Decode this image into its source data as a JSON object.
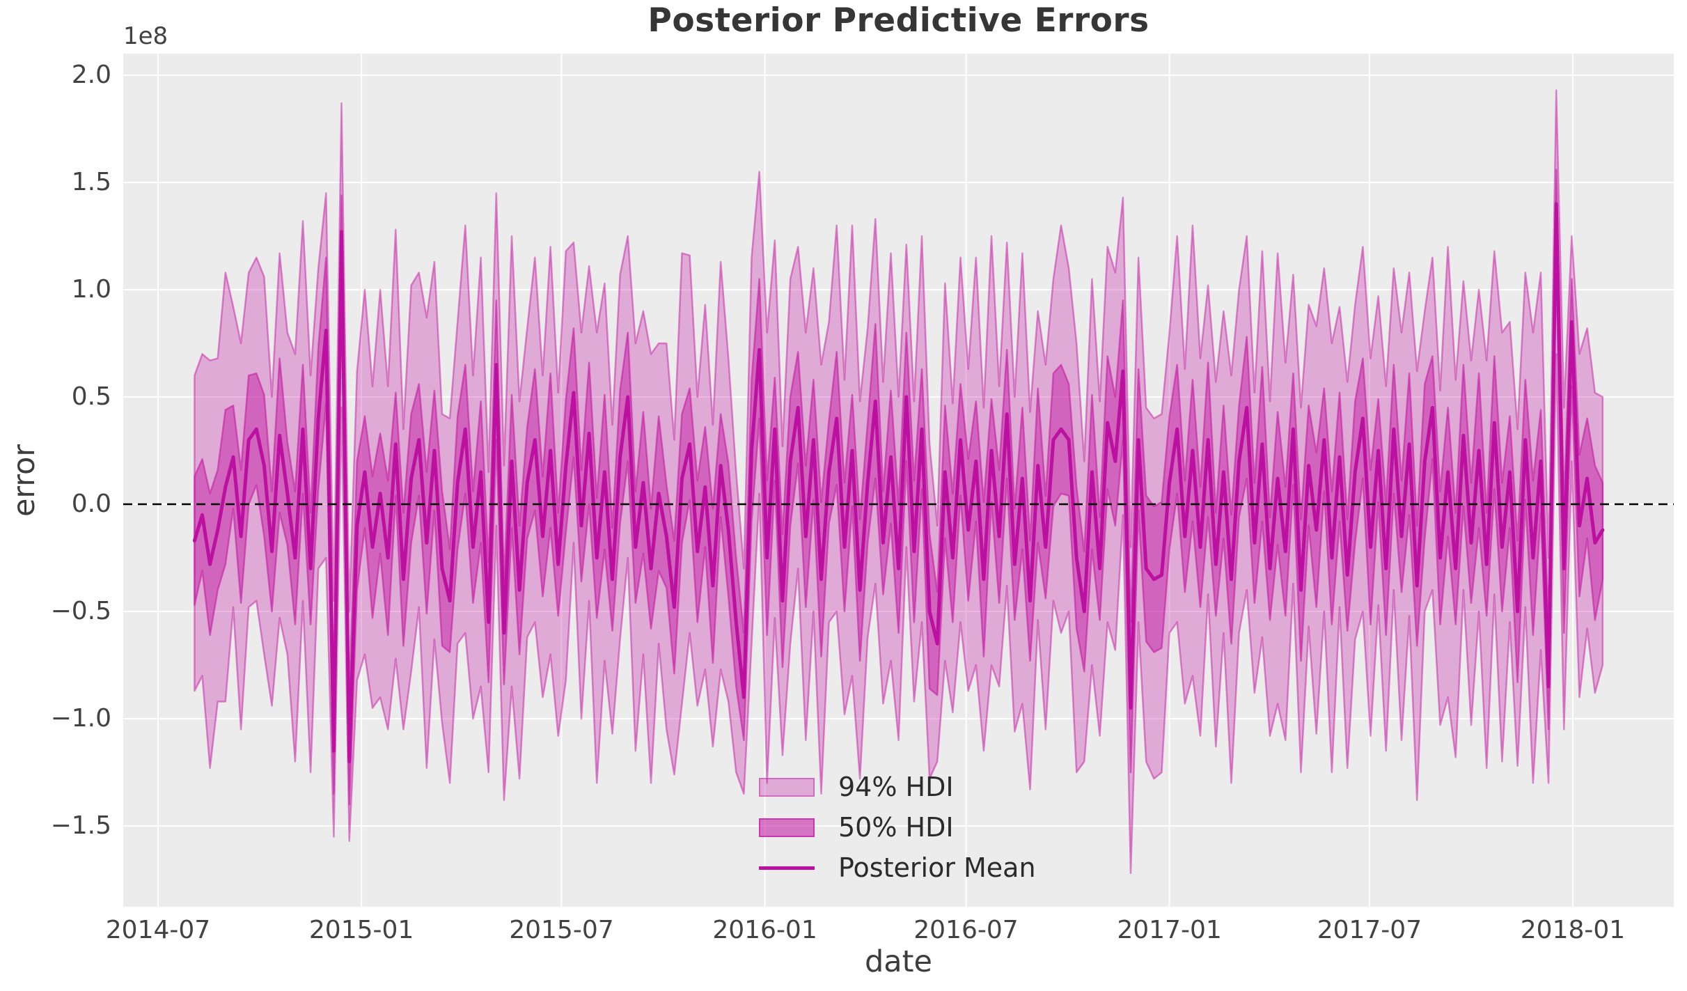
{
  "chart_data": {
    "type": "line",
    "title": "Posterior Predictive Errors",
    "xlabel": "date",
    "ylabel": "error",
    "y_offset_label": "1e8",
    "values_scale": 100000000.0,
    "x_start": "2014-08-03",
    "x_freq_days": 7,
    "n_points": 183,
    "xlim": [
      "2014-05-31",
      "2018-04-02"
    ],
    "ylim": [
      -1.88,
      2.1
    ],
    "grid": true,
    "zero_line": 0.0,
    "legend_position": "lower center",
    "legend": [
      "94% HDI",
      "50% HDI",
      "Posterior Mean"
    ],
    "x_ticks": [
      {
        "label": "2014-07",
        "day": -33
      },
      {
        "label": "2015-01",
        "day": 151
      },
      {
        "label": "2015-07",
        "day": 332
      },
      {
        "label": "2016-01",
        "day": 516
      },
      {
        "label": "2016-07",
        "day": 698
      },
      {
        "label": "2017-01",
        "day": 882
      },
      {
        "label": "2017-07",
        "day": 1063
      },
      {
        "label": "2018-01",
        "day": 1247
      }
    ],
    "y_ticks": [
      2.0,
      1.5,
      1.0,
      0.5,
      0.0,
      -0.5,
      -1.0,
      -1.5
    ],
    "series": {
      "posterior_mean": [
        -0.17,
        -0.05,
        -0.28,
        -0.12,
        0.08,
        0.22,
        -0.15,
        0.3,
        0.35,
        0.18,
        -0.22,
        0.32,
        0.05,
        -0.25,
        0.35,
        -0.3,
        0.4,
        0.81,
        -1.15,
        1.27,
        -1.2,
        -0.1,
        0.15,
        -0.2,
        0.05,
        -0.25,
        0.28,
        -0.35,
        0.12,
        0.3,
        -0.18,
        0.25,
        -0.3,
        -0.45,
        0.1,
        0.35,
        -0.2,
        0.15,
        -0.55,
        0.65,
        -0.6,
        0.2,
        -0.4,
        0.1,
        0.3,
        -0.15,
        0.25,
        -0.28,
        0.18,
        0.52,
        -0.1,
        0.33,
        -0.25,
        0.15,
        -0.35,
        0.22,
        0.5,
        -0.2,
        0.1,
        -0.3,
        0.05,
        -0.15,
        -0.48,
        0.12,
        0.28,
        -0.22,
        0.08,
        -0.38,
        0.18,
        -0.12,
        -0.55,
        -0.9,
        0.25,
        0.72,
        -0.25,
        0.35,
        -0.45,
        0.2,
        0.45,
        -0.15,
        0.3,
        -0.35,
        0.15,
        0.4,
        -0.2,
        0.25,
        -0.4,
        0.1,
        0.48,
        -0.18,
        0.22,
        -0.3,
        0.5,
        -0.22,
        0.35,
        -0.5,
        -0.65,
        0.15,
        -0.25,
        0.3,
        -0.12,
        0.2,
        -0.35,
        0.25,
        -0.15,
        0.42,
        -0.28,
        0.12,
        -0.45,
        0.18,
        -0.2,
        0.3,
        0.35,
        0.3,
        -0.25,
        -0.5,
        0.15,
        -0.3,
        0.38,
        0.2,
        0.62,
        -0.95,
        0.3,
        -0.3,
        -0.35,
        -0.33,
        0.1,
        0.35,
        -0.15,
        0.25,
        -0.2,
        0.3,
        -0.28,
        0.15,
        -0.35,
        0.2,
        0.45,
        -0.18,
        0.28,
        -0.3,
        0.12,
        -0.22,
        0.35,
        -0.4,
        0.18,
        -0.12,
        0.3,
        -0.25,
        0.22,
        -0.33,
        0.15,
        0.4,
        -0.2,
        0.25,
        -0.3,
        0.35,
        -0.15,
        0.28,
        -0.38,
        0.2,
        0.45,
        -0.25,
        0.15,
        -0.3,
        0.32,
        -0.18,
        0.25,
        -0.28,
        0.38,
        -0.2,
        0.15,
        -0.5,
        0.3,
        -0.25,
        0.2,
        -0.85,
        1.4,
        -0.3,
        0.85,
        -0.1,
        0.12,
        -0.18,
        -0.12
      ],
      "hdi50_lower": [
        -0.47,
        -0.31,
        -0.61,
        -0.4,
        -0.28,
        -0.02,
        -0.46,
        0.0,
        0.09,
        -0.15,
        -0.5,
        -0.04,
        -0.19,
        -0.56,
        0.05,
        -0.56,
        0.07,
        0.47,
        -1.35,
        0.95,
        -1.4,
        -0.4,
        -0.11,
        -0.53,
        -0.23,
        -0.61,
        0.04,
        -0.66,
        -0.18,
        0.04,
        -0.51,
        -0.03,
        -0.66,
        -0.69,
        -0.21,
        0.05,
        -0.46,
        -0.18,
        -0.83,
        0.3,
        -0.84,
        -0.11,
        -0.7,
        -0.16,
        -0.03,
        -0.43,
        -0.11,
        -0.52,
        -0.13,
        0.22,
        -0.36,
        0.0,
        -0.53,
        -0.21,
        -0.59,
        -0.09,
        0.2,
        -0.46,
        -0.23,
        -0.58,
        -0.31,
        -0.39,
        -0.79,
        -0.18,
        0.02,
        -0.55,
        -0.2,
        -0.74,
        -0.06,
        -0.43,
        -0.85,
        -1.1,
        -0.08,
        0.4,
        -0.61,
        0.11,
        -0.76,
        -0.1,
        0.19,
        -0.48,
        0.02,
        -0.71,
        -0.09,
        0.09,
        -0.5,
        -0.01,
        -0.73,
        -0.18,
        0.12,
        -0.42,
        -0.09,
        -0.6,
        0.2,
        -0.55,
        0.07,
        -0.86,
        -0.89,
        -0.16,
        -0.55,
        0.04,
        -0.45,
        -0.08,
        -0.71,
        0.01,
        -0.46,
        0.12,
        -0.54,
        -0.21,
        -0.73,
        -0.18,
        -0.44,
        -0.01,
        0.05,
        0.04,
        -0.58,
        -0.78,
        -0.21,
        -0.54,
        0.07,
        -0.1,
        0.3,
        -1.25,
        -0.03,
        -0.64,
        -0.69,
        -0.67,
        -0.21,
        0.05,
        -0.41,
        -0.08,
        -0.48,
        -0.06,
        -0.52,
        -0.16,
        -0.65,
        -0.06,
        0.12,
        -0.46,
        -0.08,
        -0.54,
        -0.19,
        -0.52,
        0.09,
        -0.73,
        -0.1,
        -0.48,
        0.06,
        -0.56,
        -0.08,
        -0.59,
        -0.18,
        0.12,
        -0.56,
        0.01,
        -0.61,
        0.05,
        -0.41,
        -0.05,
        -0.66,
        -0.16,
        0.21,
        -0.56,
        -0.15,
        -0.56,
        -0.01,
        -0.46,
        -0.11,
        -0.52,
        0.07,
        -0.5,
        -0.11,
        -0.83,
        0.02,
        -0.61,
        -0.04,
        -1.05,
        1.1,
        -0.6,
        0.55,
        -0.43,
        -0.16,
        -0.54,
        -0.35
      ],
      "hdi50_upper": [
        0.13,
        0.21,
        0.05,
        0.16,
        0.44,
        0.46,
        0.16,
        0.6,
        0.61,
        0.51,
        0.06,
        0.68,
        0.29,
        0.06,
        0.65,
        -0.04,
        0.73,
        1.15,
        -0.85,
        1.44,
        -0.9,
        0.2,
        0.41,
        0.13,
        0.33,
        0.11,
        0.52,
        -0.04,
        0.42,
        0.56,
        0.15,
        0.53,
        0.06,
        -0.21,
        0.41,
        0.65,
        0.06,
        0.48,
        -0.27,
        0.95,
        -0.36,
        0.51,
        -0.1,
        0.36,
        0.63,
        0.13,
        0.61,
        -0.04,
        0.49,
        0.82,
        0.16,
        0.66,
        0.03,
        0.51,
        -0.11,
        0.53,
        0.8,
        0.06,
        0.43,
        -0.02,
        0.41,
        0.09,
        -0.17,
        0.42,
        0.54,
        0.11,
        0.36,
        -0.02,
        0.42,
        0.19,
        -0.25,
        -0.6,
        0.58,
        1.05,
        0.11,
        0.59,
        -0.14,
        0.5,
        0.71,
        0.18,
        0.58,
        0.01,
        0.39,
        0.71,
        0.1,
        0.51,
        -0.07,
        0.38,
        0.84,
        0.06,
        0.53,
        0.0,
        0.8,
        0.11,
        0.63,
        -0.14,
        -0.41,
        0.46,
        0.05,
        0.56,
        0.21,
        0.48,
        0.01,
        0.49,
        0.16,
        0.72,
        -0.02,
        0.45,
        -0.17,
        0.54,
        0.04,
        0.61,
        0.65,
        0.56,
        0.08,
        -0.22,
        0.51,
        -0.06,
        0.69,
        0.5,
        0.95,
        -0.55,
        0.63,
        0.04,
        -0.01,
        0.01,
        0.41,
        0.65,
        0.11,
        0.58,
        0.08,
        0.66,
        -0.04,
        0.46,
        -0.05,
        0.46,
        0.78,
        0.1,
        0.64,
        -0.06,
        0.43,
        0.08,
        0.61,
        -0.07,
        0.46,
        0.24,
        0.54,
        0.06,
        0.52,
        -0.07,
        0.48,
        0.68,
        0.16,
        0.49,
        0.01,
        0.65,
        0.11,
        0.61,
        -0.1,
        0.56,
        0.69,
        0.06,
        0.45,
        -0.04,
        0.65,
        0.1,
        0.61,
        -0.04,
        0.69,
        0.1,
        0.41,
        -0.17,
        0.58,
        0.11,
        0.44,
        -0.55,
        1.56,
        0.0,
        1.05,
        0.23,
        0.4,
        0.18,
        0.1
      ],
      "hdi94_lower": [
        -0.87,
        -0.8,
        -1.23,
        -0.92,
        -0.92,
        -0.48,
        -1.05,
        -0.48,
        -0.45,
        -0.7,
        -0.94,
        -0.53,
        -0.7,
        -1.2,
        -0.45,
        -1.25,
        -0.3,
        -0.25,
        -1.55,
        0.45,
        -1.57,
        -0.82,
        -0.7,
        -0.95,
        -0.9,
        -1.05,
        -0.72,
        -1.05,
        -0.78,
        -0.48,
        -1.23,
        -0.63,
        -1.02,
        -1.3,
        -0.65,
        -0.6,
        -1.0,
        -0.85,
        -1.25,
        -0.1,
        -1.38,
        -0.85,
        -1.28,
        -0.62,
        -0.55,
        -0.9,
        -0.7,
        -1.08,
        -0.82,
        -0.18,
        -1.0,
        -0.45,
        -1.3,
        -0.73,
        -1.07,
        -0.63,
        -0.25,
        -1.15,
        -0.7,
        -1.3,
        -0.65,
        -1.05,
        -1.26,
        -0.93,
        -0.6,
        -0.94,
        -0.77,
        -1.13,
        -0.77,
        -0.92,
        -1.25,
        -1.35,
        -0.65,
        0.05,
        -1.3,
        -0.53,
        -1.17,
        -0.65,
        -0.3,
        -1.1,
        -0.5,
        -1.35,
        -0.55,
        -0.5,
        -0.98,
        -0.8,
        -1.28,
        -0.62,
        -0.37,
        -0.93,
        -0.73,
        -1.1,
        -0.2,
        -0.92,
        -0.55,
        -1.28,
        -1.2,
        -0.73,
        -0.97,
        -0.55,
        -0.87,
        -0.75,
        -1.15,
        -0.75,
        -0.85,
        -0.38,
        -1.06,
        -0.93,
        -1.33,
        -0.54,
        -1.05,
        -0.45,
        -0.6,
        -0.5,
        -1.25,
        -1.2,
        -0.75,
        -1.08,
        -0.55,
        -0.68,
        -0.05,
        -1.72,
        -0.55,
        -1.2,
        -1.28,
        -1.25,
        -0.6,
        -0.55,
        -0.93,
        -0.8,
        -1.08,
        -0.42,
        -1.13,
        -0.6,
        -1.3,
        -0.6,
        -0.4,
        -0.88,
        -0.62,
        -1.08,
        -0.93,
        -1.1,
        -0.37,
        -1.25,
        -0.57,
        -1.07,
        -0.5,
        -1.25,
        -0.48,
        -1.23,
        -0.63,
        -0.5,
        -1.08,
        -0.47,
        -1.15,
        -0.4,
        -1.1,
        -0.52,
        -1.38,
        -0.5,
        -0.4,
        -1.03,
        -0.9,
        -1.18,
        -0.4,
        -1.03,
        -0.5,
        -1.23,
        -0.42,
        -1.2,
        -0.55,
        -1.22,
        -0.48,
        -1.3,
        -0.68,
        -1.3,
        0.7,
        -1.05,
        0.2,
        -0.9,
        -0.58,
        -0.88,
        -0.75
      ],
      "hdi94_upper": [
        0.6,
        0.7,
        0.67,
        0.68,
        1.08,
        0.92,
        0.75,
        1.08,
        1.15,
        1.06,
        0.5,
        1.17,
        0.8,
        0.7,
        1.32,
        0.6,
        1.1,
        1.45,
        -0.45,
        1.87,
        -0.5,
        0.62,
        1.0,
        0.55,
        1.0,
        0.55,
        1.28,
        0.35,
        1.02,
        1.08,
        0.87,
        1.13,
        0.42,
        0.4,
        0.85,
        1.3,
        0.6,
        1.15,
        0.15,
        1.45,
        0.18,
        1.25,
        0.48,
        0.82,
        1.15,
        0.6,
        1.2,
        0.52,
        1.18,
        1.22,
        0.8,
        1.11,
        0.8,
        1.03,
        0.37,
        1.07,
        1.25,
        0.75,
        0.9,
        0.7,
        0.75,
        0.75,
        0.3,
        1.17,
        1.16,
        0.5,
        0.93,
        0.37,
        1.13,
        0.68,
        0.15,
        -0.3,
        1.15,
        1.55,
        0.8,
        1.23,
        0.27,
        1.05,
        1.2,
        0.8,
        1.1,
        0.65,
        0.85,
        1.3,
        0.58,
        1.3,
        0.48,
        0.82,
        1.33,
        0.57,
        1.17,
        0.5,
        1.21,
        0.48,
        1.25,
        0.28,
        -0.1,
        1.03,
        0.47,
        1.15,
        0.63,
        1.15,
        0.45,
        1.25,
        0.55,
        1.22,
        0.5,
        1.17,
        0.43,
        0.9,
        0.65,
        1.05,
        1.3,
        1.1,
        0.75,
        0.2,
        1.05,
        0.48,
        1.2,
        1.08,
        1.43,
        -0.2,
        1.15,
        0.45,
        0.4,
        0.42,
        0.8,
        1.25,
        0.63,
        1.3,
        0.68,
        1.02,
        0.57,
        0.9,
        0.6,
        1.0,
        1.25,
        0.52,
        1.18,
        0.48,
        1.17,
        0.66,
        1.07,
        0.45,
        0.93,
        0.83,
        1.1,
        0.75,
        0.92,
        0.57,
        0.93,
        1.2,
        0.68,
        0.97,
        0.55,
        1.1,
        0.8,
        1.08,
        0.62,
        0.9,
        1.15,
        0.53,
        1.2,
        0.58,
        1.04,
        0.67,
        1.0,
        0.67,
        1.18,
        0.8,
        0.85,
        0.35,
        1.08,
        0.8,
        1.08,
        -0.25,
        1.93,
        0.45,
        1.25,
        0.7,
        0.82,
        0.52,
        0.5
      ]
    }
  },
  "colors": {
    "figure_bg": "#FFFFFF",
    "plot_bg": "#ECECEC",
    "grid": "#FFFFFF",
    "band_rgb": "195,30,164",
    "hdi94_alpha": 0.32,
    "hdi50_alpha": 0.5,
    "band_edge_alpha": 0.5,
    "mean_line": "#BB10A0",
    "zero_line": "#000000",
    "title_text": "#363636",
    "tick_text": "#424242",
    "legend_text": "#2B2B2B"
  }
}
